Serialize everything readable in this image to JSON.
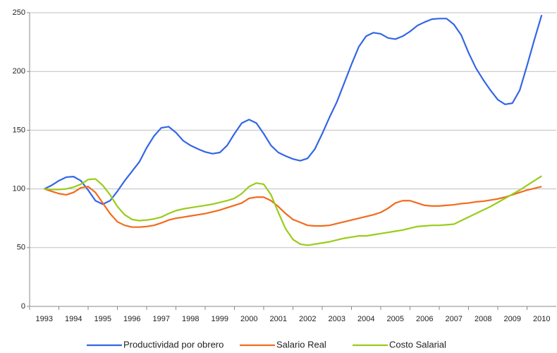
{
  "chart_data": {
    "type": "line",
    "x": [
      1993,
      1993.25,
      1993.5,
      1993.75,
      1994,
      1994.25,
      1994.5,
      1994.75,
      1995,
      1995.25,
      1995.5,
      1995.75,
      1996,
      1996.25,
      1996.5,
      1996.75,
      1997,
      1997.25,
      1997.5,
      1997.75,
      1998,
      1998.25,
      1998.5,
      1998.75,
      1999,
      1999.25,
      1999.5,
      1999.75,
      2000,
      2000.25,
      2000.5,
      2000.75,
      2001,
      2001.25,
      2001.5,
      2001.75,
      2002,
      2002.25,
      2002.5,
      2002.75,
      2003,
      2003.25,
      2003.5,
      2003.75,
      2004,
      2004.25,
      2004.5,
      2004.75,
      2005,
      2005.25,
      2005.5,
      2005.75,
      2006,
      2006.25,
      2006.5,
      2006.75,
      2007,
      2007.25,
      2007.5,
      2007.75,
      2008,
      2008.25,
      2008.5,
      2008.75,
      2009,
      2009.25,
      2009.5,
      2009.75,
      2010
    ],
    "series": [
      {
        "name": "Productividad por obrero",
        "color": "#3366e6",
        "values": [
          100,
          103,
          107,
          110,
          110.5,
          107,
          99,
          90,
          87,
          90,
          98,
          107,
          115,
          123,
          135,
          145,
          152,
          153,
          148,
          141,
          137,
          134,
          131.5,
          130,
          131,
          137,
          147,
          156,
          159,
          156,
          147,
          137,
          131,
          128,
          125.5,
          124,
          126,
          134,
          147,
          161,
          174,
          190,
          206,
          221,
          230,
          233,
          232,
          228.5,
          227.5,
          230,
          234,
          239,
          242,
          244.5,
          245,
          245,
          240,
          231,
          216,
          203,
          193,
          184,
          176,
          172,
          173,
          184,
          205,
          227,
          248
        ]
      },
      {
        "name": "Salario Real",
        "color": "#f26b1d",
        "values": [
          100,
          98,
          96,
          95,
          97,
          101,
          102,
          97,
          88,
          79,
          72,
          69,
          67.5,
          67.5,
          68,
          69,
          71,
          73.5,
          75,
          76,
          77,
          78,
          79,
          80.5,
          82,
          84,
          86,
          88,
          92,
          93,
          93,
          90,
          85,
          79,
          74,
          71.5,
          69,
          68.5,
          68.5,
          69,
          70.5,
          72,
          73.5,
          75,
          76.5,
          78,
          80,
          83.5,
          88,
          90,
          90,
          88,
          86,
          85.5,
          85.5,
          86,
          86.5,
          87.5,
          88,
          89,
          89.5,
          90.5,
          91.5,
          93,
          95,
          97,
          99,
          100.5,
          102
        ]
      },
      {
        "name": "Costo Salarial",
        "color": "#99cc1a",
        "values": [
          100,
          99.5,
          99.5,
          100,
          101.5,
          104,
          108,
          108.5,
          103,
          95,
          85,
          78,
          74,
          73,
          73.5,
          74.5,
          76,
          79,
          81.5,
          83,
          84,
          85,
          86,
          87,
          88.5,
          90,
          92,
          96,
          102,
          105,
          104,
          95,
          80,
          66,
          57,
          53,
          52,
          53,
          54,
          55,
          56.5,
          58,
          59,
          60,
          60,
          61,
          62,
          63,
          64,
          65,
          66.5,
          68,
          68.5,
          69,
          69,
          69.5,
          70,
          73,
          76,
          79,
          82,
          85,
          88.5,
          92,
          95.5,
          99,
          103,
          107,
          111
        ]
      }
    ],
    "xlim": [
      1992.5,
      2010.5
    ],
    "xticks": [
      1993,
      1994,
      1995,
      1996,
      1997,
      1998,
      1999,
      2000,
      2001,
      2002,
      2003,
      2004,
      2005,
      2006,
      2007,
      2008,
      2009,
      2010
    ],
    "ylim": [
      0,
      250
    ],
    "yticks": [
      0,
      50,
      100,
      150,
      200,
      250
    ],
    "grid": true,
    "legend": "bottom"
  }
}
